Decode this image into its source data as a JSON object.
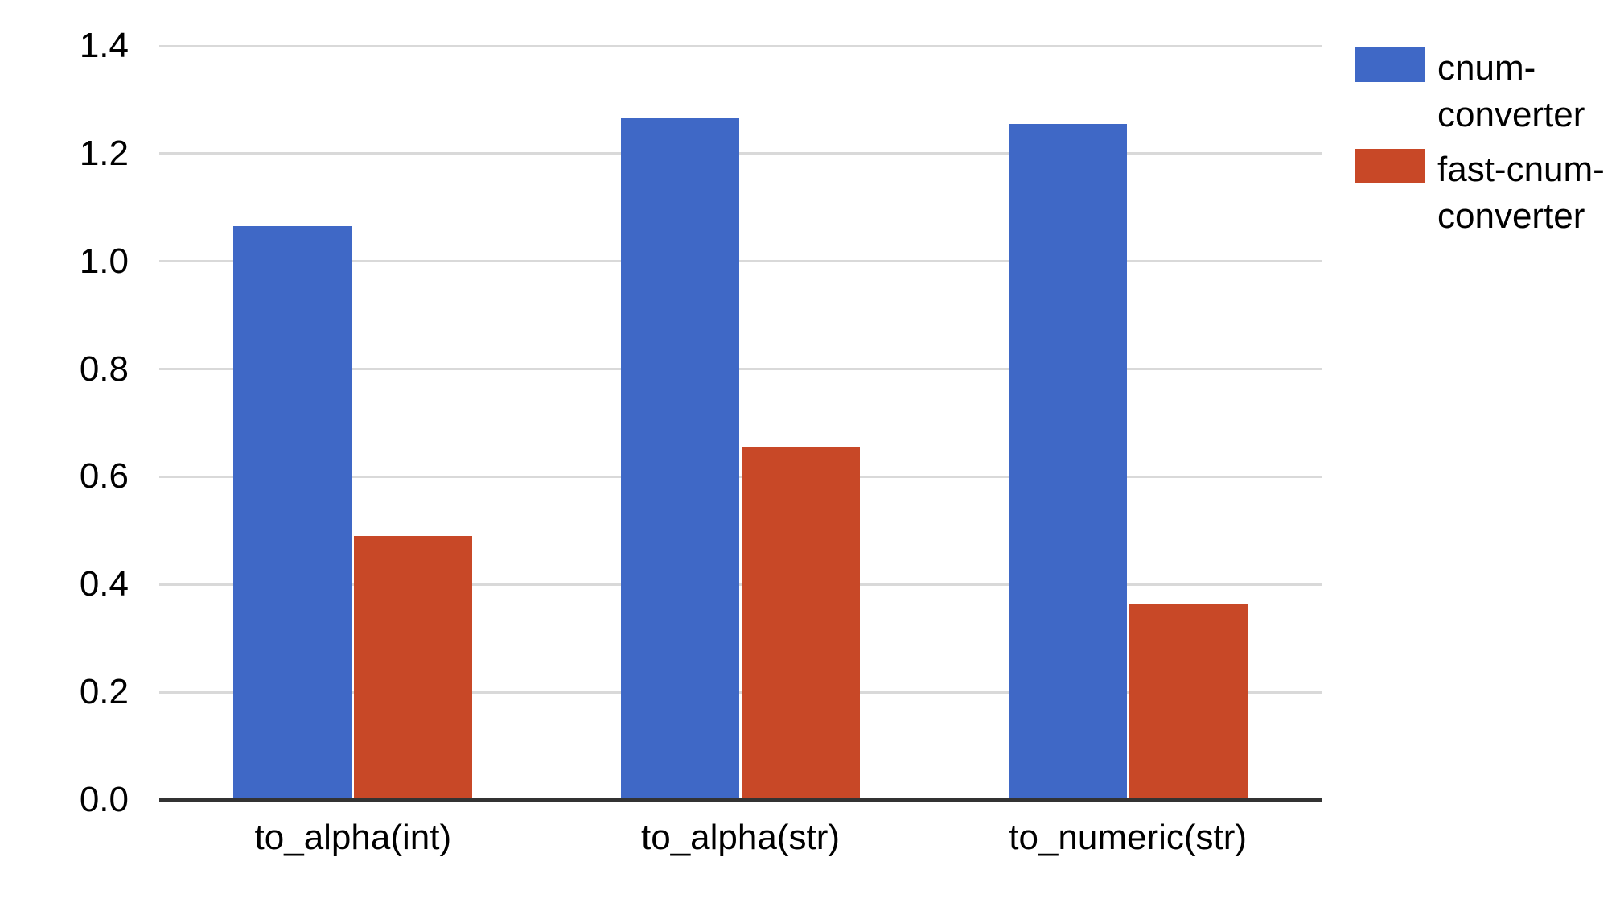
{
  "chart_data": {
    "type": "bar",
    "title": "",
    "xlabel": "",
    "ylabel": "",
    "categories": [
      "to_alpha(int)",
      "to_alpha(str)",
      "to_numeric(str)"
    ],
    "series": [
      {
        "name": "cnum-converter",
        "color": "#3f68c6",
        "values": [
          1.065,
          1.265,
          1.255
        ]
      },
      {
        "name": "fast-cnum-converter",
        "color": "#c84827",
        "values": [
          0.49,
          0.655,
          0.365
        ]
      }
    ],
    "ylim": [
      0,
      1.4
    ],
    "yticks": [
      "0.0",
      "0.2",
      "0.4",
      "0.6",
      "0.8",
      "1.0",
      "1.2",
      "1.4"
    ],
    "grid": true,
    "legend_position": "right"
  },
  "legend": {
    "items": [
      {
        "label": "cnum-converter",
        "color": "#3f68c6"
      },
      {
        "label": "fast-cnum-converter",
        "color": "#c84827"
      }
    ]
  },
  "colors": {
    "grid": "#d9d9d9",
    "axis": "#333333",
    "text": "#000000",
    "background": "#ffffff"
  }
}
